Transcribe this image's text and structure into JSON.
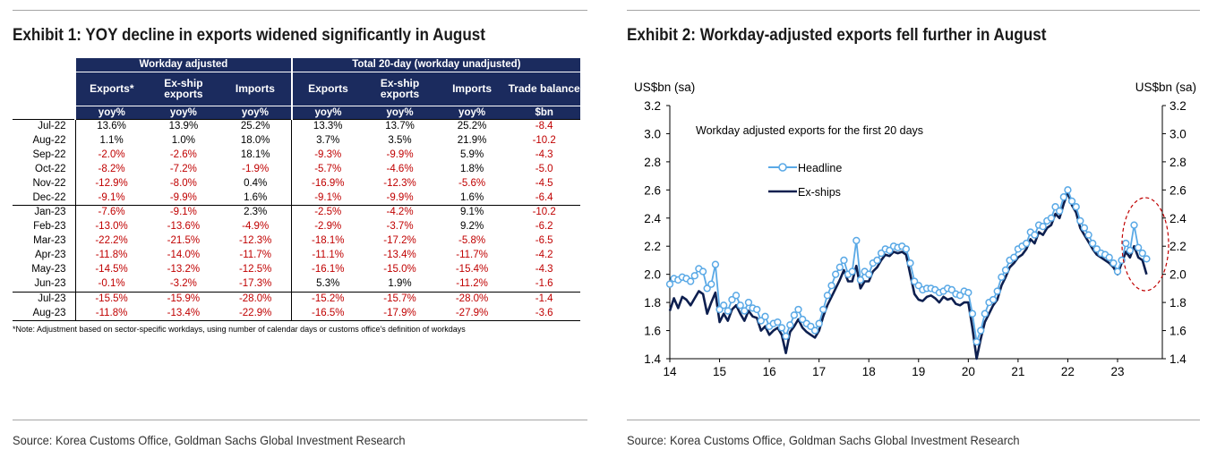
{
  "exhibit1": {
    "title": "Exhibit 1: YOY decline in exports widened significantly in August",
    "group_workday": "Workday adjusted",
    "group_total": "Total 20-day (workday unadjusted)",
    "headers": [
      "Exports*",
      "Ex-ship exports",
      "Imports",
      "Exports",
      "Ex-ship exports",
      "Imports",
      "Trade balance"
    ],
    "units": [
      "yoy%",
      "yoy%",
      "yoy%",
      "yoy%",
      "yoy%",
      "yoy%",
      "$bn"
    ],
    "rows": [
      {
        "label": "Jul-22",
        "values": [
          "13.6%",
          "13.9%",
          "25.2%",
          "13.3%",
          "13.7%",
          "25.2%",
          "-8.4"
        ]
      },
      {
        "label": "Aug-22",
        "values": [
          "1.1%",
          "1.0%",
          "18.0%",
          "3.7%",
          "3.5%",
          "21.9%",
          "-10.2"
        ]
      },
      {
        "label": "Sep-22",
        "values": [
          "-2.0%",
          "-2.6%",
          "18.1%",
          "-9.3%",
          "-9.9%",
          "5.9%",
          "-4.3"
        ]
      },
      {
        "label": "Oct-22",
        "values": [
          "-8.2%",
          "-7.2%",
          "-1.9%",
          "-5.7%",
          "-4.6%",
          "1.8%",
          "-5.0"
        ]
      },
      {
        "label": "Nov-22",
        "values": [
          "-12.9%",
          "-8.0%",
          "0.4%",
          "-16.9%",
          "-12.3%",
          "-5.6%",
          "-4.5"
        ]
      },
      {
        "label": "Dec-22",
        "values": [
          "-9.1%",
          "-9.9%",
          "1.6%",
          "-9.1%",
          "-9.9%",
          "1.6%",
          "-6.4"
        ]
      },
      {
        "label": "Jan-23",
        "values": [
          "-7.6%",
          "-9.1%",
          "2.3%",
          "-2.5%",
          "-4.2%",
          "9.1%",
          "-10.2"
        ]
      },
      {
        "label": "Feb-23",
        "values": [
          "-13.0%",
          "-13.6%",
          "-4.9%",
          "-2.9%",
          "-3.7%",
          "9.2%",
          "-6.2"
        ]
      },
      {
        "label": "Mar-23",
        "values": [
          "-22.2%",
          "-21.5%",
          "-12.3%",
          "-18.1%",
          "-17.2%",
          "-5.8%",
          "-6.5"
        ]
      },
      {
        "label": "Apr-23",
        "values": [
          "-11.8%",
          "-14.0%",
          "-11.7%",
          "-11.1%",
          "-13.4%",
          "-11.7%",
          "-4.2"
        ]
      },
      {
        "label": "May-23",
        "values": [
          "-14.5%",
          "-13.2%",
          "-12.5%",
          "-16.1%",
          "-15.0%",
          "-15.4%",
          "-4.3"
        ]
      },
      {
        "label": "Jun-23",
        "values": [
          "-0.1%",
          "-3.2%",
          "-17.3%",
          "5.3%",
          "1.9%",
          "-11.2%",
          "-1.6"
        ]
      },
      {
        "label": "Jul-23",
        "values": [
          "-15.5%",
          "-15.9%",
          "-28.0%",
          "-15.2%",
          "-15.7%",
          "-28.0%",
          "-1.4"
        ]
      },
      {
        "label": "Aug-23",
        "values": [
          "-11.8%",
          "-13.4%",
          "-22.9%",
          "-16.5%",
          "-17.9%",
          "-27.9%",
          "-3.6"
        ]
      }
    ],
    "note": "*Note: Adjustment based on sector-specific workdays, using number of calendar days or customs office's definition of workdays",
    "source": "Source: Korea Customs Office, Goldman Sachs Global Investment Research"
  },
  "exhibit2": {
    "title": "Exhibit 2: Workday-adjusted exports fell further in August",
    "source": "Source: Korea Customs Office, Goldman Sachs Global Investment Research"
  },
  "chart_data": {
    "type": "line",
    "title": "Workday adjusted exports for the first 20 days",
    "ylabel_left": "US$bn (sa)",
    "ylabel_right": "US$bn (sa)",
    "ylim": [
      1.4,
      3.2
    ],
    "yticks": [
      "1.4",
      "1.6",
      "1.8",
      "2.0",
      "2.2",
      "2.4",
      "2.6",
      "2.8",
      "3.0",
      "3.2"
    ],
    "xlim": [
      2014.0,
      2023.9
    ],
    "xticks": [
      "14",
      "15",
      "16",
      "17",
      "18",
      "19",
      "20",
      "21",
      "22",
      "23"
    ],
    "legend": [
      "Headline",
      "Ex-ships"
    ],
    "legend_position": "upper-left",
    "annotation": "red dashed ellipse highlighting 2023 decline",
    "colors": {
      "headline": "#5aa9e6",
      "exships": "#0d1f4f",
      "annotation": "#c00000"
    },
    "series": [
      {
        "name": "Headline",
        "x": [
          2014.0,
          2014.083,
          2014.167,
          2014.25,
          2014.333,
          2014.417,
          2014.5,
          2014.583,
          2014.667,
          2014.75,
          2014.833,
          2014.917,
          2015.0,
          2015.083,
          2015.167,
          2015.25,
          2015.333,
          2015.417,
          2015.5,
          2015.583,
          2015.667,
          2015.75,
          2015.833,
          2015.917,
          2016.0,
          2016.083,
          2016.167,
          2016.25,
          2016.333,
          2016.417,
          2016.5,
          2016.583,
          2016.667,
          2016.75,
          2016.833,
          2016.917,
          2017.0,
          2017.083,
          2017.167,
          2017.25,
          2017.333,
          2017.417,
          2017.5,
          2017.583,
          2017.667,
          2017.75,
          2017.833,
          2017.917,
          2018.0,
          2018.083,
          2018.167,
          2018.25,
          2018.333,
          2018.417,
          2018.5,
          2018.583,
          2018.667,
          2018.75,
          2018.833,
          2018.917,
          2019.0,
          2019.083,
          2019.167,
          2019.25,
          2019.333,
          2019.417,
          2019.5,
          2019.583,
          2019.667,
          2019.75,
          2019.833,
          2019.917,
          2020.0,
          2020.083,
          2020.167,
          2020.25,
          2020.333,
          2020.417,
          2020.5,
          2020.583,
          2020.667,
          2020.75,
          2020.833,
          2020.917,
          2021.0,
          2021.083,
          2021.167,
          2021.25,
          2021.333,
          2021.417,
          2021.5,
          2021.583,
          2021.667,
          2021.75,
          2021.833,
          2021.917,
          2022.0,
          2022.083,
          2022.167,
          2022.25,
          2022.333,
          2022.417,
          2022.5,
          2022.583,
          2022.667,
          2022.75,
          2022.833,
          2022.917,
          2023.0,
          2023.083,
          2023.167,
          2023.25,
          2023.333,
          2023.417,
          2023.5,
          2023.583
        ],
        "values": [
          1.93,
          1.97,
          1.96,
          1.98,
          1.97,
          1.95,
          1.99,
          2.04,
          2.02,
          1.9,
          1.93,
          2.07,
          1.75,
          1.78,
          1.74,
          1.82,
          1.85,
          1.78,
          1.74,
          1.8,
          1.76,
          1.75,
          1.67,
          1.7,
          1.63,
          1.65,
          1.66,
          1.62,
          1.56,
          1.64,
          1.71,
          1.75,
          1.68,
          1.65,
          1.63,
          1.6,
          1.65,
          1.75,
          1.85,
          1.92,
          2.0,
          2.05,
          2.1,
          2.0,
          2.02,
          2.24,
          1.96,
          2.02,
          2.0,
          2.08,
          2.1,
          2.15,
          2.18,
          2.17,
          2.2,
          2.19,
          2.2,
          2.18,
          2.08,
          1.95,
          1.92,
          1.89,
          1.9,
          1.9,
          1.89,
          1.87,
          1.88,
          1.9,
          1.89,
          1.86,
          1.85,
          1.88,
          1.87,
          1.72,
          1.52,
          1.6,
          1.72,
          1.8,
          1.82,
          1.88,
          1.98,
          2.03,
          2.1,
          2.12,
          2.18,
          2.2,
          2.22,
          2.3,
          2.28,
          2.35,
          2.34,
          2.38,
          2.4,
          2.48,
          2.45,
          2.55,
          2.6,
          2.52,
          2.48,
          2.38,
          2.33,
          2.28,
          2.22,
          2.18,
          2.15,
          2.14,
          2.12,
          2.08,
          2.02,
          2.1,
          2.22,
          2.17,
          2.35,
          2.19,
          2.15,
          2.11
        ]
      },
      {
        "name": "Ex-ships",
        "x": [
          2014.0,
          2014.083,
          2014.167,
          2014.25,
          2014.333,
          2014.417,
          2014.5,
          2014.583,
          2014.667,
          2014.75,
          2014.833,
          2014.917,
          2015.0,
          2015.083,
          2015.167,
          2015.25,
          2015.333,
          2015.417,
          2015.5,
          2015.583,
          2015.667,
          2015.75,
          2015.833,
          2015.917,
          2016.0,
          2016.083,
          2016.167,
          2016.25,
          2016.333,
          2016.417,
          2016.5,
          2016.583,
          2016.667,
          2016.75,
          2016.833,
          2016.917,
          2017.0,
          2017.083,
          2017.167,
          2017.25,
          2017.333,
          2017.417,
          2017.5,
          2017.583,
          2017.667,
          2017.75,
          2017.833,
          2017.917,
          2018.0,
          2018.083,
          2018.167,
          2018.25,
          2018.333,
          2018.417,
          2018.5,
          2018.583,
          2018.667,
          2018.75,
          2018.833,
          2018.917,
          2019.0,
          2019.083,
          2019.167,
          2019.25,
          2019.333,
          2019.417,
          2019.5,
          2019.583,
          2019.667,
          2019.75,
          2019.833,
          2019.917,
          2020.0,
          2020.083,
          2020.167,
          2020.25,
          2020.333,
          2020.417,
          2020.5,
          2020.583,
          2020.667,
          2020.75,
          2020.833,
          2020.917,
          2021.0,
          2021.083,
          2021.167,
          2021.25,
          2021.333,
          2021.417,
          2021.5,
          2021.583,
          2021.667,
          2021.75,
          2021.833,
          2021.917,
          2022.0,
          2022.083,
          2022.167,
          2022.25,
          2022.333,
          2022.417,
          2022.5,
          2022.583,
          2022.667,
          2022.75,
          2022.833,
          2022.917,
          2023.0,
          2023.083,
          2023.167,
          2023.25,
          2023.333,
          2023.417,
          2023.5,
          2023.583
        ],
        "values": [
          1.74,
          1.83,
          1.76,
          1.84,
          1.82,
          1.78,
          1.83,
          1.88,
          1.86,
          1.72,
          1.8,
          1.87,
          1.66,
          1.72,
          1.67,
          1.75,
          1.78,
          1.72,
          1.67,
          1.74,
          1.7,
          1.69,
          1.6,
          1.63,
          1.57,
          1.6,
          1.62,
          1.57,
          1.44,
          1.59,
          1.63,
          1.68,
          1.62,
          1.59,
          1.57,
          1.55,
          1.6,
          1.7,
          1.78,
          1.84,
          1.9,
          1.96,
          2.03,
          1.95,
          1.95,
          2.06,
          1.9,
          1.95,
          1.95,
          2.02,
          2.05,
          2.1,
          2.14,
          2.13,
          2.16,
          2.15,
          2.16,
          2.14,
          2.0,
          1.86,
          1.82,
          1.81,
          1.84,
          1.85,
          1.83,
          1.8,
          1.84,
          1.82,
          1.83,
          1.79,
          1.78,
          1.8,
          1.8,
          1.62,
          1.4,
          1.54,
          1.66,
          1.72,
          1.78,
          1.82,
          1.92,
          1.98,
          2.05,
          2.08,
          2.12,
          2.14,
          2.18,
          2.25,
          2.22,
          2.3,
          2.28,
          2.33,
          2.35,
          2.43,
          2.4,
          2.5,
          2.58,
          2.49,
          2.44,
          2.33,
          2.28,
          2.23,
          2.18,
          2.14,
          2.12,
          2.1,
          2.08,
          2.05,
          2.0,
          2.08,
          2.16,
          2.12,
          2.2,
          2.12,
          2.1,
          2.0
        ]
      }
    ]
  }
}
